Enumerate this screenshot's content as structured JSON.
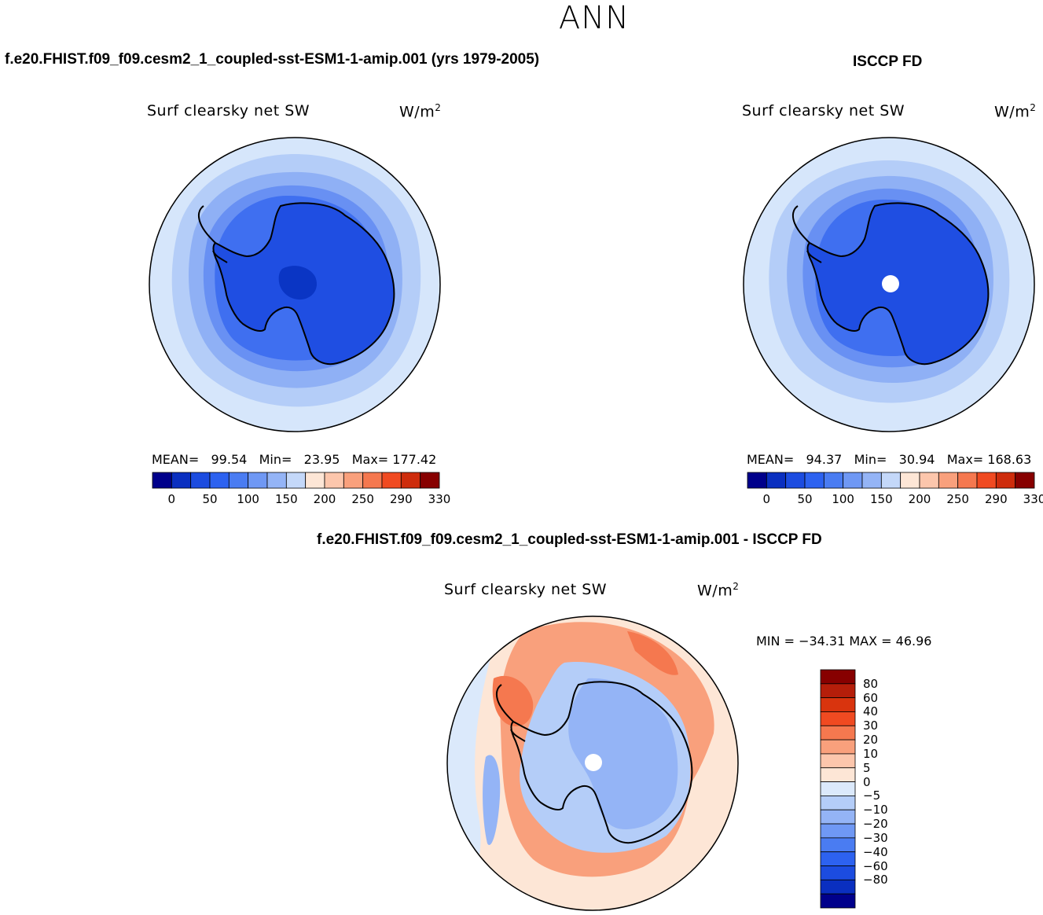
{
  "page": {
    "season": "ANN",
    "model_title": "f.e20.FHIST.f09_f09.cesm2_1_coupled-sst-ESM1-1-amip.001 (yrs 1979-2005)",
    "obs_title": "ISCCP FD",
    "diff_title": "f.e20.FHIST.f09_f09.cesm2_1_coupled-sst-ESM1-1-amip.001 - ISCCP FD"
  },
  "panels": {
    "model": {
      "variable": "Surf clearsky net SW",
      "units_base": "W/m",
      "units_exp": "2",
      "mean_label": "MEAN=",
      "mean": "99.54",
      "min_label": "Min=",
      "min": "23.95",
      "max_label": "Max=",
      "max": "177.42"
    },
    "obs": {
      "variable": "Surf clearsky net SW",
      "units_base": "W/m",
      "units_exp": "2",
      "mean_label": "MEAN=",
      "mean": "94.37",
      "min_label": "Min=",
      "min": "30.94",
      "max_label": "Max=",
      "max": "168.63"
    },
    "diff": {
      "variable": "Surf clearsky net SW",
      "units_base": "W/m",
      "units_exp": "2",
      "minmax_text": "MIN = −34.31 MAX =   46.96"
    }
  },
  "colorbars": {
    "abs": {
      "colors": [
        "#00008b",
        "#0a2fc0",
        "#1c4ce0",
        "#2d62f0",
        "#4a7cf2",
        "#6f98f4",
        "#94b4f6",
        "#bcd2f8",
        "#dbe9fb",
        "#fde3d4",
        "#fcc6ac",
        "#f9a07c",
        "#f5784f",
        "#f04a21",
        "#d22d0e",
        "#ab1e0a",
        "#870000"
      ],
      "colors_shown": [
        "#00008b",
        "#0a2fc0",
        "#1c4ce0",
        "#2d62f0",
        "#4a7cf2",
        "#6f98f4",
        "#94b4f6",
        "#c4d8f9",
        "#fde6d6",
        "#fcc6ac",
        "#f9a07c",
        "#f5784f",
        "#f04a21",
        "#ce2c0c",
        "#870000"
      ],
      "ticks": [
        "0",
        "50",
        "100",
        "150",
        "200",
        "250",
        "290",
        "330"
      ]
    },
    "diff": {
      "colors_top_to_bottom": [
        "#870000",
        "#b51e0a",
        "#d9340e",
        "#f04a21",
        "#f5784f",
        "#f9a07c",
        "#fcc6ac",
        "#fde6d6",
        "#dbe9fb",
        "#b4cdf8",
        "#94b4f6",
        "#6f98f4",
        "#4a7cf2",
        "#2d62f0",
        "#1c4ce0",
        "#0a2fc0",
        "#00008b"
      ],
      "ticks_top_to_bottom": [
        "80",
        "60",
        "40",
        "30",
        "20",
        "10",
        "5",
        "0",
        "−5",
        "−10",
        "−20",
        "−30",
        "−40",
        "−60",
        "−80"
      ]
    }
  },
  "map_colors": {
    "abs_outer": "#d6e6fb",
    "abs_ring2": "#b4cdf8",
    "abs_ring3": "#8fb0f5",
    "abs_ring4": "#6890f3",
    "abs_ring5": "#3f6ff0",
    "abs_land": "#1f4ee2",
    "abs_core": "#0a35c4",
    "coast": "#000000",
    "missing": "#ffffff",
    "diff_warm1": "#fde6d6",
    "diff_warm2": "#f9a07c",
    "diff_warm3": "#f5784f",
    "diff_warm4": "#f04a21",
    "diff_cool1": "#dbe9fb",
    "diff_cool2": "#b4cdf8",
    "diff_cool3": "#94b4f6",
    "diff_cool4": "#6f98f4",
    "diff_cool5": "#4a7cf2"
  }
}
